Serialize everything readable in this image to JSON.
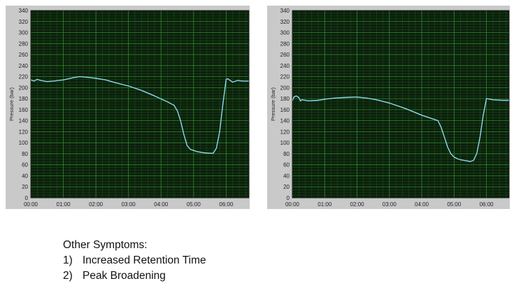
{
  "chart_data": [
    {
      "type": "line",
      "ylabel": "Pressure (bar)",
      "ylim": [
        0,
        340
      ],
      "xlim": [
        0,
        6.7
      ],
      "y_ticks": [
        "0",
        "20",
        "40",
        "60",
        "80",
        "100",
        "120",
        "140",
        "160",
        "180",
        "200",
        "220",
        "240",
        "260",
        "280",
        "300",
        "320",
        "340"
      ],
      "x_tick_labels": [
        "00:00",
        "01:00",
        "02:00",
        "03:00",
        "04:00",
        "05:00",
        "06:00"
      ],
      "grid": true,
      "x": [
        0,
        0.1,
        0.2,
        0.3,
        0.5,
        0.7,
        1.0,
        1.3,
        1.5,
        1.7,
        2.0,
        2.3,
        2.6,
        3.0,
        3.4,
        3.8,
        4.2,
        4.4,
        4.5,
        4.6,
        4.7,
        4.8,
        4.9,
        5.0,
        5.1,
        5.3,
        5.5,
        5.6,
        5.7,
        5.8,
        5.9,
        6.0,
        6.05,
        6.1,
        6.2,
        6.35,
        6.5,
        6.7
      ],
      "values": [
        214,
        212,
        215,
        213,
        211,
        212,
        214,
        218,
        220,
        219,
        217,
        214,
        209,
        203,
        195,
        185,
        174,
        168,
        158,
        140,
        115,
        95,
        88,
        86,
        84,
        82,
        81,
        81,
        90,
        120,
        170,
        215,
        216,
        214,
        210,
        213,
        212,
        212
      ]
    },
    {
      "type": "line",
      "ylabel": "Pressure (bar)",
      "ylim": [
        0,
        340
      ],
      "xlim": [
        0,
        6.7
      ],
      "y_ticks": [
        "0",
        "20",
        "40",
        "60",
        "80",
        "100",
        "120",
        "140",
        "160",
        "180",
        "200",
        "220",
        "240",
        "260",
        "280",
        "300",
        "320",
        "340"
      ],
      "x_tick_labels": [
        "00:00",
        "01:00",
        "02:00",
        "03:00",
        "04:00",
        "05:00",
        "06:00"
      ],
      "grid": true,
      "x": [
        0,
        0.05,
        0.12,
        0.2,
        0.25,
        0.3,
        0.5,
        0.8,
        1.0,
        1.3,
        1.6,
        2.0,
        2.3,
        2.6,
        3.0,
        3.5,
        4.0,
        4.5,
        4.6,
        4.7,
        4.8,
        4.9,
        5.0,
        5.1,
        5.2,
        5.4,
        5.5,
        5.6,
        5.7,
        5.8,
        5.9,
        6.0,
        6.2,
        6.5,
        6.7
      ],
      "values": [
        176,
        183,
        185,
        182,
        176,
        178,
        176,
        177,
        179,
        181,
        182,
        183,
        181,
        178,
        172,
        162,
        150,
        140,
        128,
        110,
        92,
        80,
        74,
        71,
        69,
        67,
        66,
        68,
        80,
        110,
        150,
        180,
        178,
        177,
        177
      ]
    }
  ],
  "notes": {
    "heading": "Other Symptoms:",
    "items": [
      {
        "number": "1)",
        "text": "Increased Retention Time"
      },
      {
        "number": "2)",
        "text": "Peak Broadening"
      }
    ]
  },
  "colors": {
    "plot_bg": "#0b1f0b",
    "grid_major": "#2f8a2f",
    "grid_minor": "#1d4a1d",
    "trace": "#8fd8ee",
    "frame": "#c9c9c9"
  }
}
